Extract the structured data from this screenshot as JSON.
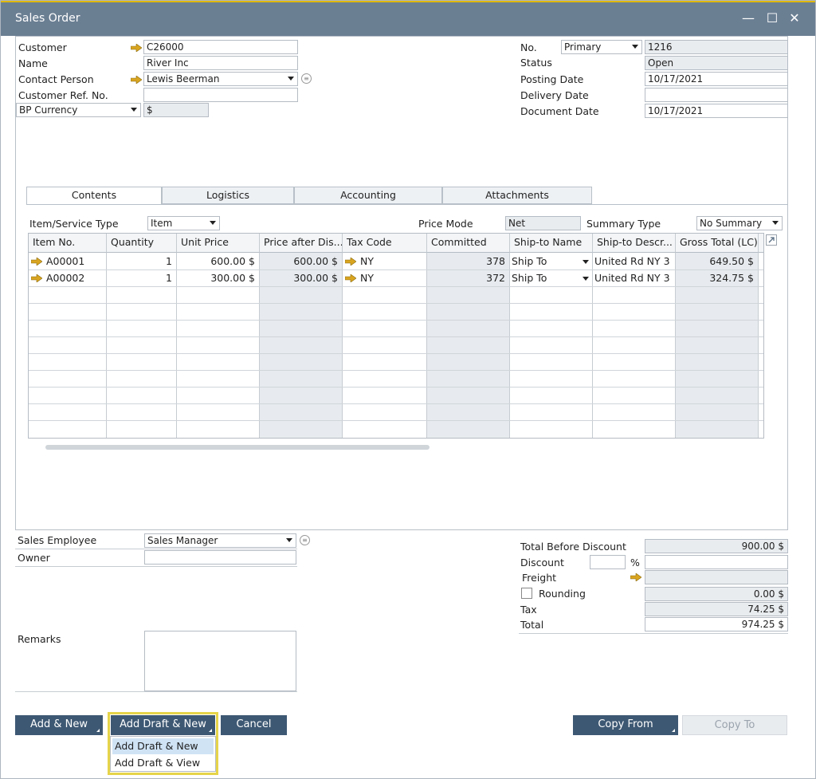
{
  "window": {
    "title": "Sales Order",
    "min": "—",
    "max": "☐",
    "close": "✕"
  },
  "header_left": {
    "customer_label": "Customer",
    "customer": "C26000",
    "name_label": "Name",
    "name": "River Inc",
    "contact_label": "Contact Person",
    "contact": "Lewis Beerman",
    "custref_label": "Customer Ref. No.",
    "custref": "",
    "currency_label": "BP Currency",
    "currency": "$"
  },
  "header_right": {
    "no_label": "No.",
    "series": "Primary",
    "no": "1216",
    "status_label": "Status",
    "status": "Open",
    "posting_label": "Posting Date",
    "posting": "10/17/2021",
    "delivery_label": "Delivery Date",
    "delivery": "",
    "document_label": "Document Date",
    "document": "10/17/2021"
  },
  "tabs": [
    "Contents",
    "Logistics",
    "Accounting",
    "Attachments"
  ],
  "contents": {
    "type_label": "Item/Service Type",
    "type": "Item",
    "price_mode_label": "Price Mode",
    "price_mode": "Net",
    "summary_label": "Summary Type",
    "summary": "No Summary"
  },
  "table": {
    "headers": [
      "Item No.",
      "Quantity",
      "Unit Price",
      "Price after Dis...",
      "Tax Code",
      "Committed",
      "Ship-to Name",
      "Ship-to Descr...",
      "Gross Total (LC)"
    ],
    "rows": [
      {
        "item": "A00001",
        "qty": "1",
        "unit": "600.00 $",
        "after": "600.00 $",
        "tax": "NY",
        "committed": "378",
        "shipto": "Ship To",
        "descr": "United Rd  NY  3",
        "gross": "649.50 $"
      },
      {
        "item": "A00002",
        "qty": "1",
        "unit": "300.00 $",
        "after": "300.00 $",
        "tax": "NY",
        "committed": "372",
        "shipto": "Ship To",
        "descr": "United Rd  NY  3",
        "gross": "324.75 $"
      }
    ]
  },
  "footer_left": {
    "employee_label": "Sales Employee",
    "employee": "Sales Manager",
    "owner_label": "Owner",
    "owner": "",
    "remarks_label": "Remarks",
    "remarks": ""
  },
  "totals": {
    "before_label": "Total Before Discount",
    "before": "900.00 $",
    "discount_label": "Discount",
    "discount_pct": "",
    "pct": "%",
    "discount": "",
    "freight_label": "Freight",
    "freight": "",
    "rounding_label": "Rounding",
    "rounding": "0.00 $",
    "tax_label": "Tax",
    "tax": "74.25 $",
    "total_label": "Total",
    "total": "974.25 $"
  },
  "buttons": {
    "add_new": "Add & New",
    "add_draft_new": "Add Draft & New",
    "cancel": "Cancel",
    "copy_from": "Copy From",
    "copy_to": "Copy To"
  },
  "menu": {
    "items": [
      "Add Draft & New",
      "Add Draft & View"
    ]
  },
  "colors": {
    "titlebar": "#6b7f93",
    "button": "#3d5873",
    "highlight": "#e6d44a",
    "arrow": "#d9a520"
  }
}
